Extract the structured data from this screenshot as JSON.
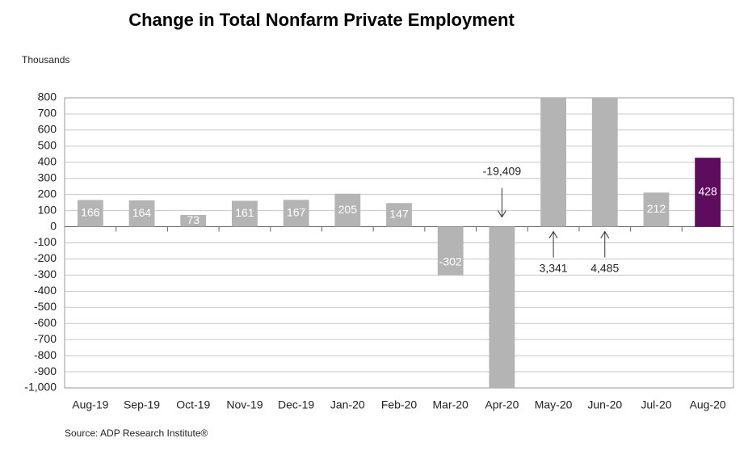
{
  "chart_data": {
    "type": "bar",
    "title": "Change in Total Nonfarm Private Employment",
    "y_axis_label": "Thousands",
    "source": "Source: ADP Research Institute®",
    "categories": [
      "Aug-19",
      "Sep-19",
      "Oct-19",
      "Nov-19",
      "Dec-19",
      "Jan-20",
      "Feb-20",
      "Mar-20",
      "Apr-20",
      "May-20",
      "Jun-20",
      "Jul-20",
      "Aug-20"
    ],
    "values": [
      166,
      164,
      73,
      161,
      167,
      205,
      147,
      -302,
      -19409,
      3341,
      4485,
      212,
      428
    ],
    "value_labels": [
      "166",
      "164",
      "73",
      "161",
      "167",
      "205",
      "147",
      "-302",
      "-19,409",
      "3,341",
      "4,485",
      "212",
      "428"
    ],
    "colors": [
      "#b4b4b4",
      "#b4b4b4",
      "#b4b4b4",
      "#b4b4b4",
      "#b4b4b4",
      "#b4b4b4",
      "#b4b4b4",
      "#b4b4b4",
      "#b4b4b4",
      "#b4b4b4",
      "#b4b4b4",
      "#b4b4b4",
      "#5e0d5e"
    ],
    "ylim": [
      -1000,
      800
    ],
    "yticks": [
      {
        "value": -1000,
        "label": "-1,000"
      },
      -900,
      -800,
      -700,
      -600,
      -500,
      -400,
      -300,
      -200,
      -100,
      0,
      100,
      200,
      300,
      400,
      500,
      600,
      700,
      800
    ],
    "grid": true
  }
}
